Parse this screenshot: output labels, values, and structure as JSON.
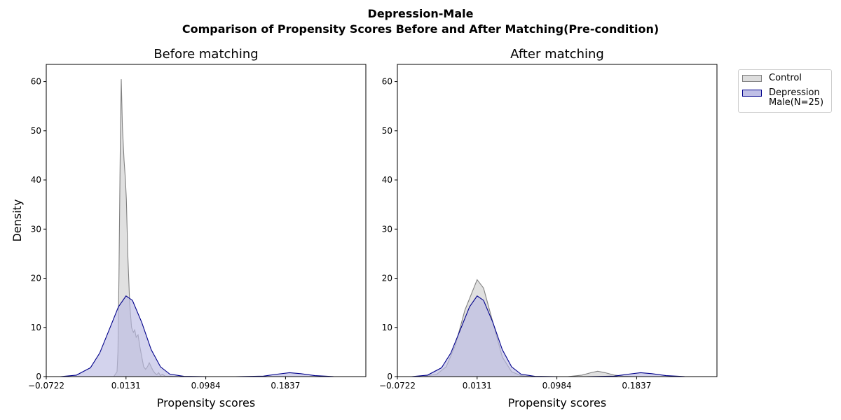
{
  "suptitle": {
    "line1": "Depression-Male",
    "line2": "Comparison of Propensity Scores Before and After Matching(Pre-condition)"
  },
  "legend": {
    "items": [
      {
        "label": "Control",
        "fill": "#dddddd",
        "stroke": "#808080"
      },
      {
        "label": "Depression\nMale(N=25)",
        "fill": "#bfbfe6",
        "stroke": "#00008b"
      }
    ]
  },
  "colors": {
    "control_fill": "#dddddd",
    "control_line": "#808080",
    "treated_fill": "#bbbbe4",
    "treated_line": "#00008b"
  },
  "chart_data": [
    {
      "type": "area",
      "title": "Before matching",
      "xlabel": "Propensity scores",
      "ylabel": "Density",
      "xlim": [
        -0.0722,
        0.2696
      ],
      "ylim": [
        0,
        63.5
      ],
      "xticks": [
        -0.0722,
        0.0131,
        0.0984,
        0.1837
      ],
      "xtick_labels": [
        "−0.0722",
        "0.0131",
        "0.0984",
        "0.1837"
      ],
      "yticks": [
        0,
        10,
        20,
        30,
        40,
        50,
        60
      ],
      "series": [
        {
          "name": "Control",
          "points": [
            [
              0.0,
              0
            ],
            [
              0.0035,
              1
            ],
            [
              0.0045,
              5
            ],
            [
              0.0055,
              20
            ],
            [
              0.007,
              48
            ],
            [
              0.008,
              60.5
            ],
            [
              0.0092,
              51
            ],
            [
              0.011,
              44
            ],
            [
              0.0125,
              40
            ],
            [
              0.0135,
              36
            ],
            [
              0.015,
              25
            ],
            [
              0.017,
              15
            ],
            [
              0.019,
              10
            ],
            [
              0.021,
              9
            ],
            [
              0.0225,
              9.5
            ],
            [
              0.024,
              8
            ],
            [
              0.026,
              8.5
            ],
            [
              0.028,
              6
            ],
            [
              0.03,
              4
            ],
            [
              0.032,
              2
            ],
            [
              0.034,
              1.5
            ],
            [
              0.036,
              2
            ],
            [
              0.038,
              2.8
            ],
            [
              0.04,
              2
            ],
            [
              0.042,
              1.2
            ],
            [
              0.044,
              0.7
            ],
            [
              0.046,
              0.4
            ],
            [
              0.048,
              0.8
            ],
            [
              0.05,
              0.2
            ],
            [
              0.052,
              0.5
            ],
            [
              0.055,
              0.1
            ],
            [
              0.06,
              0.05
            ],
            [
              0.07,
              0
            ],
            [
              0.09,
              0
            ],
            [
              0.2696,
              0
            ]
          ]
        },
        {
          "name": "Depression\nMale(N=25)",
          "points": [
            [
              -0.0572,
              0
            ],
            [
              -0.04,
              0.3
            ],
            [
              -0.025,
              1.8
            ],
            [
              -0.015,
              4.8
            ],
            [
              -0.005,
              9.5
            ],
            [
              0.005,
              14.2
            ],
            [
              0.0131,
              16.4
            ],
            [
              0.02,
              15.5
            ],
            [
              0.03,
              11
            ],
            [
              0.04,
              5.5
            ],
            [
              0.05,
              2
            ],
            [
              0.06,
              0.5
            ],
            [
              0.075,
              0.05
            ],
            [
              0.1,
              0
            ],
            [
              0.13,
              0
            ],
            [
              0.16,
              0.1
            ],
            [
              0.175,
              0.5
            ],
            [
              0.188,
              0.8
            ],
            [
              0.2,
              0.6
            ],
            [
              0.215,
              0.2
            ],
            [
              0.235,
              0.02
            ],
            [
              0.255,
              0
            ]
          ]
        }
      ]
    },
    {
      "type": "area",
      "title": "After matching",
      "xlabel": "Propensity scores",
      "ylabel": "",
      "xlim": [
        -0.0722,
        0.2696
      ],
      "ylim": [
        0,
        63.5
      ],
      "xticks": [
        -0.0722,
        0.0131,
        0.0984,
        0.1837
      ],
      "xtick_labels": [
        "−0.0722",
        "0.0131",
        "0.0984",
        "0.1837"
      ],
      "yticks": [
        0,
        10,
        20,
        30,
        40,
        50,
        60
      ],
      "series": [
        {
          "name": "Control",
          "points": [
            [
              -0.045,
              0
            ],
            [
              -0.03,
              0.5
            ],
            [
              -0.02,
              2
            ],
            [
              -0.01,
              6.5
            ],
            [
              0.0,
              13.5
            ],
            [
              0.0131,
              19.7
            ],
            [
              0.02,
              18
            ],
            [
              0.03,
              11
            ],
            [
              0.04,
              4
            ],
            [
              0.05,
              1
            ],
            [
              0.06,
              0.2
            ],
            [
              0.075,
              0
            ],
            [
              0.11,
              0
            ],
            [
              0.125,
              0.3
            ],
            [
              0.135,
              0.8
            ],
            [
              0.142,
              1.1
            ],
            [
              0.15,
              0.8
            ],
            [
              0.16,
              0.3
            ],
            [
              0.17,
              0.1
            ],
            [
              0.18,
              0
            ]
          ]
        },
        {
          "name": "Depression\nMale(N=25)",
          "points": [
            [
              -0.0572,
              0
            ],
            [
              -0.04,
              0.3
            ],
            [
              -0.025,
              1.8
            ],
            [
              -0.015,
              4.8
            ],
            [
              -0.005,
              9.5
            ],
            [
              0.005,
              14.2
            ],
            [
              0.0131,
              16.4
            ],
            [
              0.02,
              15.5
            ],
            [
              0.03,
              11
            ],
            [
              0.04,
              5.5
            ],
            [
              0.05,
              2
            ],
            [
              0.06,
              0.5
            ],
            [
              0.075,
              0.05
            ],
            [
              0.1,
              0
            ],
            [
              0.13,
              0
            ],
            [
              0.16,
              0.1
            ],
            [
              0.175,
              0.5
            ],
            [
              0.188,
              0.8
            ],
            [
              0.2,
              0.6
            ],
            [
              0.215,
              0.2
            ],
            [
              0.235,
              0.02
            ],
            [
              0.255,
              0
            ]
          ]
        }
      ]
    }
  ]
}
